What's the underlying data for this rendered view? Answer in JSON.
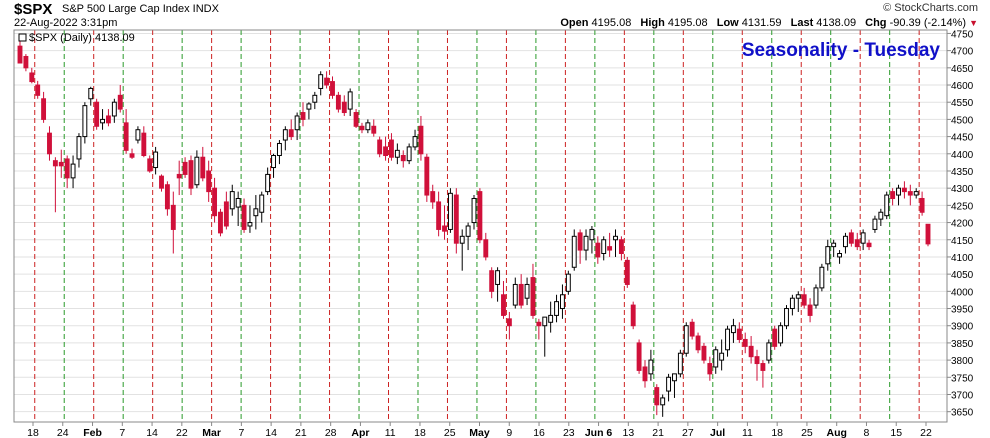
{
  "header": {
    "symbol": "$SPX",
    "description": "S&P 500 Large Cap Index INDX",
    "timestamp": "22-Aug-2022 3:31pm",
    "brand": "© StockCharts.com",
    "open_label": "Open",
    "open": "4195.08",
    "high_label": "High",
    "high": "4195.08",
    "low_label": "Low",
    "low": "4131.59",
    "last_label": "Last",
    "last": "4138.09",
    "chg_label": "Chg",
    "chg": "-90.39 (-2.14%)",
    "chg_icon": "down-triangle-icon"
  },
  "chart_data": {
    "type": "candlestick",
    "title": "Seasonality - Tuesday",
    "legend": "$SPX (Daily) 4138.09",
    "ylim": [
      3620,
      4760
    ],
    "yticks": [
      3650,
      3700,
      3750,
      3800,
      3850,
      3900,
      3950,
      4000,
      4050,
      4100,
      4150,
      4200,
      4250,
      4300,
      4350,
      4400,
      4450,
      4500,
      4550,
      4600,
      4650,
      4700,
      4750
    ],
    "x_tick_labels": [
      "18",
      "24",
      "Feb",
      "7",
      "14",
      "22",
      "Mar",
      "7",
      "14",
      "21",
      "28",
      "Apr",
      "11",
      "18",
      "25",
      "May",
      "9",
      "16",
      "23",
      "Jun 6",
      "13",
      "21",
      "27",
      "Jul",
      "11",
      "18",
      "25",
      "Aug",
      "8",
      "15",
      "22"
    ],
    "x_tick_bold": [
      "Feb",
      "Mar",
      "Apr",
      "May",
      "Jun 6",
      "Jul",
      "Aug"
    ],
    "colors": {
      "up": "#000000",
      "down": "#d0103a",
      "tuesday_line": "#cc2222",
      "other_line": "#2a9a2a",
      "title": "#1010c8"
    },
    "candles": [
      {
        "o": 4713,
        "h": 4740,
        "l": 4663,
        "c": 4664
      },
      {
        "o": 4683,
        "h": 4690,
        "l": 4640,
        "c": 4650
      },
      {
        "o": 4635,
        "h": 4650,
        "l": 4605,
        "c": 4610
      },
      {
        "o": 4600,
        "h": 4612,
        "l": 4560,
        "c": 4570
      },
      {
        "o": 4560,
        "h": 4580,
        "l": 4490,
        "c": 4500
      },
      {
        "o": 4460,
        "h": 4480,
        "l": 4380,
        "c": 4400
      },
      {
        "o": 4380,
        "h": 4390,
        "l": 4230,
        "c": 4365
      },
      {
        "o": 4375,
        "h": 4412,
        "l": 4330,
        "c": 4365
      },
      {
        "o": 4385,
        "h": 4395,
        "l": 4300,
        "c": 4330
      },
      {
        "o": 4330,
        "h": 4395,
        "l": 4300,
        "c": 4370
      },
      {
        "o": 4385,
        "h": 4460,
        "l": 4360,
        "c": 4450
      },
      {
        "o": 4450,
        "h": 4550,
        "l": 4430,
        "c": 4540
      },
      {
        "o": 4560,
        "h": 4595,
        "l": 4540,
        "c": 4590
      },
      {
        "o": 4550,
        "h": 4560,
        "l": 4470,
        "c": 4480
      },
      {
        "o": 4490,
        "h": 4530,
        "l": 4470,
        "c": 4500
      },
      {
        "o": 4510,
        "h": 4530,
        "l": 4480,
        "c": 4490
      },
      {
        "o": 4510,
        "h": 4560,
        "l": 4490,
        "c": 4550
      },
      {
        "o": 4570,
        "h": 4600,
        "l": 4520,
        "c": 4530
      },
      {
        "o": 4490,
        "h": 4530,
        "l": 4400,
        "c": 4410
      },
      {
        "o": 4400,
        "h": 4415,
        "l": 4385,
        "c": 4390
      },
      {
        "o": 4440,
        "h": 4480,
        "l": 4430,
        "c": 4470
      },
      {
        "o": 4460,
        "h": 4480,
        "l": 4390,
        "c": 4395
      },
      {
        "o": 4385,
        "h": 4395,
        "l": 4345,
        "c": 4350
      },
      {
        "o": 4360,
        "h": 4420,
        "l": 4340,
        "c": 4405
      },
      {
        "o": 4335,
        "h": 4340,
        "l": 4290,
        "c": 4300
      },
      {
        "o": 4310,
        "h": 4320,
        "l": 4220,
        "c": 4240
      },
      {
        "o": 4250,
        "h": 4290,
        "l": 4110,
        "c": 4180
      },
      {
        "o": 4340,
        "h": 4380,
        "l": 4280,
        "c": 4330
      },
      {
        "o": 4375,
        "h": 4390,
        "l": 4330,
        "c": 4340
      },
      {
        "o": 4380,
        "h": 4395,
        "l": 4280,
        "c": 4300
      },
      {
        "o": 4310,
        "h": 4410,
        "l": 4300,
        "c": 4390
      },
      {
        "o": 4390,
        "h": 4420,
        "l": 4320,
        "c": 4330
      },
      {
        "o": 4350,
        "h": 4380,
        "l": 4260,
        "c": 4290
      },
      {
        "o": 4300,
        "h": 4330,
        "l": 4200,
        "c": 4220
      },
      {
        "o": 4230,
        "h": 4240,
        "l": 4160,
        "c": 4170
      },
      {
        "o": 4260,
        "h": 4290,
        "l": 4180,
        "c": 4190
      },
      {
        "o": 4240,
        "h": 4310,
        "l": 4220,
        "c": 4290
      },
      {
        "o": 4245,
        "h": 4290,
        "l": 4190,
        "c": 4270
      },
      {
        "o": 4250,
        "h": 4270,
        "l": 4170,
        "c": 4180
      },
      {
        "o": 4190,
        "h": 4250,
        "l": 4170,
        "c": 4200
      },
      {
        "o": 4220,
        "h": 4280,
        "l": 4180,
        "c": 4240
      },
      {
        "o": 4230,
        "h": 4290,
        "l": 4200,
        "c": 4280
      },
      {
        "o": 4290,
        "h": 4360,
        "l": 4280,
        "c": 4340
      },
      {
        "o": 4360,
        "h": 4400,
        "l": 4330,
        "c": 4395
      },
      {
        "o": 4395,
        "h": 4440,
        "l": 4370,
        "c": 4430
      },
      {
        "o": 4440,
        "h": 4480,
        "l": 4410,
        "c": 4470
      },
      {
        "o": 4470,
        "h": 4500,
        "l": 4440,
        "c": 4450
      },
      {
        "o": 4470,
        "h": 4520,
        "l": 4440,
        "c": 4510
      },
      {
        "o": 4520,
        "h": 4550,
        "l": 4480,
        "c": 4500
      },
      {
        "o": 4530,
        "h": 4550,
        "l": 4500,
        "c": 4545
      },
      {
        "o": 4550,
        "h": 4580,
        "l": 4530,
        "c": 4570
      },
      {
        "o": 4590,
        "h": 4640,
        "l": 4570,
        "c": 4630
      },
      {
        "o": 4620,
        "h": 4640,
        "l": 4590,
        "c": 4600
      },
      {
        "o": 4610,
        "h": 4625,
        "l": 4560,
        "c": 4570
      },
      {
        "o": 4570,
        "h": 4580,
        "l": 4520,
        "c": 4530
      },
      {
        "o": 4550,
        "h": 4570,
        "l": 4510,
        "c": 4520
      },
      {
        "o": 4530,
        "h": 4590,
        "l": 4510,
        "c": 4580
      },
      {
        "o": 4520,
        "h": 4530,
        "l": 4475,
        "c": 4480
      },
      {
        "o": 4480,
        "h": 4490,
        "l": 4460,
        "c": 4470
      },
      {
        "o": 4470,
        "h": 4500,
        "l": 4460,
        "c": 4490
      },
      {
        "o": 4480,
        "h": 4500,
        "l": 4450,
        "c": 4460
      },
      {
        "o": 4440,
        "h": 4450,
        "l": 4390,
        "c": 4400
      },
      {
        "o": 4420,
        "h": 4450,
        "l": 4380,
        "c": 4395
      },
      {
        "o": 4440,
        "h": 4460,
        "l": 4380,
        "c": 4390
      },
      {
        "o": 4390,
        "h": 4430,
        "l": 4370,
        "c": 4410
      },
      {
        "o": 4395,
        "h": 4410,
        "l": 4360,
        "c": 4380
      },
      {
        "o": 4380,
        "h": 4430,
        "l": 4370,
        "c": 4420
      },
      {
        "o": 4420,
        "h": 4470,
        "l": 4410,
        "c": 4450
      },
      {
        "o": 4480,
        "h": 4510,
        "l": 4380,
        "c": 4400
      },
      {
        "o": 4390,
        "h": 4400,
        "l": 4260,
        "c": 4280
      },
      {
        "o": 4290,
        "h": 4310,
        "l": 4240,
        "c": 4260
      },
      {
        "o": 4260,
        "h": 4290,
        "l": 4160,
        "c": 4180
      },
      {
        "o": 4190,
        "h": 4250,
        "l": 4150,
        "c": 4175
      },
      {
        "o": 4180,
        "h": 4300,
        "l": 4170,
        "c": 4285
      },
      {
        "o": 4280,
        "h": 4300,
        "l": 4110,
        "c": 4140
      },
      {
        "o": 4140,
        "h": 4180,
        "l": 4060,
        "c": 4160
      },
      {
        "o": 4160,
        "h": 4200,
        "l": 4120,
        "c": 4190
      },
      {
        "o": 4200,
        "h": 4280,
        "l": 4180,
        "c": 4270
      },
      {
        "o": 4290,
        "h": 4300,
        "l": 4140,
        "c": 4150
      },
      {
        "o": 4150,
        "h": 4170,
        "l": 4090,
        "c": 4100
      },
      {
        "o": 4060,
        "h": 4070,
        "l": 3980,
        "c": 4000
      },
      {
        "o": 4020,
        "h": 4070,
        "l": 3970,
        "c": 4060
      },
      {
        "o": 3990,
        "h": 4030,
        "l": 3920,
        "c": 3930
      },
      {
        "o": 3920,
        "h": 3940,
        "l": 3860,
        "c": 3900
      },
      {
        "o": 3960,
        "h": 4040,
        "l": 3950,
        "c": 4020
      },
      {
        "o": 4020,
        "h": 4050,
        "l": 3950,
        "c": 3960
      },
      {
        "o": 3980,
        "h": 4040,
        "l": 3960,
        "c": 4020
      },
      {
        "o": 4040,
        "h": 4080,
        "l": 3920,
        "c": 3930
      },
      {
        "o": 3910,
        "h": 3920,
        "l": 3860,
        "c": 3900
      },
      {
        "o": 3900,
        "h": 3920,
        "l": 3810,
        "c": 3925
      },
      {
        "o": 3910,
        "h": 3970,
        "l": 3880,
        "c": 3930
      },
      {
        "o": 3930,
        "h": 3990,
        "l": 3910,
        "c": 3970
      },
      {
        "o": 3950,
        "h": 4020,
        "l": 3920,
        "c": 3990
      },
      {
        "o": 4000,
        "h": 4060,
        "l": 3990,
        "c": 4050
      },
      {
        "o": 4070,
        "h": 4180,
        "l": 4060,
        "c": 4160
      },
      {
        "o": 4170,
        "h": 4180,
        "l": 4080,
        "c": 4120
      },
      {
        "o": 4120,
        "h": 4180,
        "l": 4090,
        "c": 4160
      },
      {
        "o": 4150,
        "h": 4190,
        "l": 4110,
        "c": 4180
      },
      {
        "o": 4140,
        "h": 4160,
        "l": 4080,
        "c": 4100
      },
      {
        "o": 4110,
        "h": 4160,
        "l": 4090,
        "c": 4150
      },
      {
        "o": 4130,
        "h": 4170,
        "l": 4100,
        "c": 4120
      },
      {
        "o": 4150,
        "h": 4180,
        "l": 4100,
        "c": 4160
      },
      {
        "o": 4150,
        "h": 4160,
        "l": 4090,
        "c": 4110
      },
      {
        "o": 4090,
        "h": 4100,
        "l": 4010,
        "c": 4020
      },
      {
        "o": 3960,
        "h": 3970,
        "l": 3890,
        "c": 3900
      },
      {
        "o": 3850,
        "h": 3860,
        "l": 3760,
        "c": 3770
      },
      {
        "o": 3780,
        "h": 3800,
        "l": 3720,
        "c": 3740
      },
      {
        "o": 3760,
        "h": 3830,
        "l": 3740,
        "c": 3800
      },
      {
        "o": 3720,
        "h": 3730,
        "l": 3640,
        "c": 3670
      },
      {
        "o": 3670,
        "h": 3700,
        "l": 3635,
        "c": 3690
      },
      {
        "o": 3710,
        "h": 3760,
        "l": 3680,
        "c": 3750
      },
      {
        "o": 3740,
        "h": 3760,
        "l": 3690,
        "c": 3760
      },
      {
        "o": 3760,
        "h": 3830,
        "l": 3750,
        "c": 3820
      },
      {
        "o": 3820,
        "h": 3910,
        "l": 3810,
        "c": 3900
      },
      {
        "o": 3910,
        "h": 3920,
        "l": 3860,
        "c": 3870
      },
      {
        "o": 3870,
        "h": 3880,
        "l": 3820,
        "c": 3830
      },
      {
        "o": 3840,
        "h": 3850,
        "l": 3790,
        "c": 3800
      },
      {
        "o": 3790,
        "h": 3810,
        "l": 3740,
        "c": 3760
      },
      {
        "o": 3780,
        "h": 3840,
        "l": 3760,
        "c": 3830
      },
      {
        "o": 3800,
        "h": 3860,
        "l": 3770,
        "c": 3820
      },
      {
        "o": 3830,
        "h": 3900,
        "l": 3810,
        "c": 3890
      },
      {
        "o": 3880,
        "h": 3920,
        "l": 3850,
        "c": 3900
      },
      {
        "o": 3890,
        "h": 3910,
        "l": 3850,
        "c": 3860
      },
      {
        "o": 3860,
        "h": 3880,
        "l": 3820,
        "c": 3840
      },
      {
        "o": 3840,
        "h": 3870,
        "l": 3790,
        "c": 3810
      },
      {
        "o": 3810,
        "h": 3830,
        "l": 3740,
        "c": 3790
      },
      {
        "o": 3790,
        "h": 3800,
        "l": 3720,
        "c": 3770
      },
      {
        "o": 3800,
        "h": 3860,
        "l": 3790,
        "c": 3850
      },
      {
        "o": 3890,
        "h": 3900,
        "l": 3830,
        "c": 3840
      },
      {
        "o": 3850,
        "h": 3910,
        "l": 3840,
        "c": 3900
      },
      {
        "o": 3900,
        "h": 3960,
        "l": 3890,
        "c": 3950
      },
      {
        "o": 3950,
        "h": 3990,
        "l": 3930,
        "c": 3980
      },
      {
        "o": 3980,
        "h": 4000,
        "l": 3940,
        "c": 3990
      },
      {
        "o": 3990,
        "h": 4010,
        "l": 3950,
        "c": 3960
      },
      {
        "o": 3960,
        "h": 3980,
        "l": 3910,
        "c": 3930
      },
      {
        "o": 3960,
        "h": 4020,
        "l": 3950,
        "c": 4010
      },
      {
        "o": 4010,
        "h": 4080,
        "l": 4000,
        "c": 4070
      },
      {
        "o": 4080,
        "h": 4150,
        "l": 4060,
        "c": 4130
      },
      {
        "o": 4130,
        "h": 4150,
        "l": 4100,
        "c": 4140
      },
      {
        "o": 4100,
        "h": 4120,
        "l": 4080,
        "c": 4110
      },
      {
        "o": 4130,
        "h": 4170,
        "l": 4110,
        "c": 4160
      },
      {
        "o": 4170,
        "h": 4180,
        "l": 4130,
        "c": 4140
      },
      {
        "o": 4150,
        "h": 4170,
        "l": 4120,
        "c": 4130
      },
      {
        "o": 4140,
        "h": 4180,
        "l": 4120,
        "c": 4170
      },
      {
        "o": 4140,
        "h": 4150,
        "l": 4120,
        "c": 4130
      },
      {
        "o": 4180,
        "h": 4220,
        "l": 4170,
        "c": 4210
      },
      {
        "o": 4210,
        "h": 4240,
        "l": 4190,
        "c": 4230
      },
      {
        "o": 4220,
        "h": 4290,
        "l": 4210,
        "c": 4280
      },
      {
        "o": 4290,
        "h": 4300,
        "l": 4250,
        "c": 4270
      },
      {
        "o": 4280,
        "h": 4310,
        "l": 4250,
        "c": 4300
      },
      {
        "o": 4300,
        "h": 4320,
        "l": 4270,
        "c": 4290
      },
      {
        "o": 4290,
        "h": 4310,
        "l": 4250,
        "c": 4280
      },
      {
        "o": 4280,
        "h": 4300,
        "l": 4270,
        "c": 4290
      },
      {
        "o": 4270,
        "h": 4290,
        "l": 4220,
        "c": 4230
      },
      {
        "o": 4195,
        "h": 4195,
        "l": 4131,
        "c": 4138
      }
    ]
  }
}
